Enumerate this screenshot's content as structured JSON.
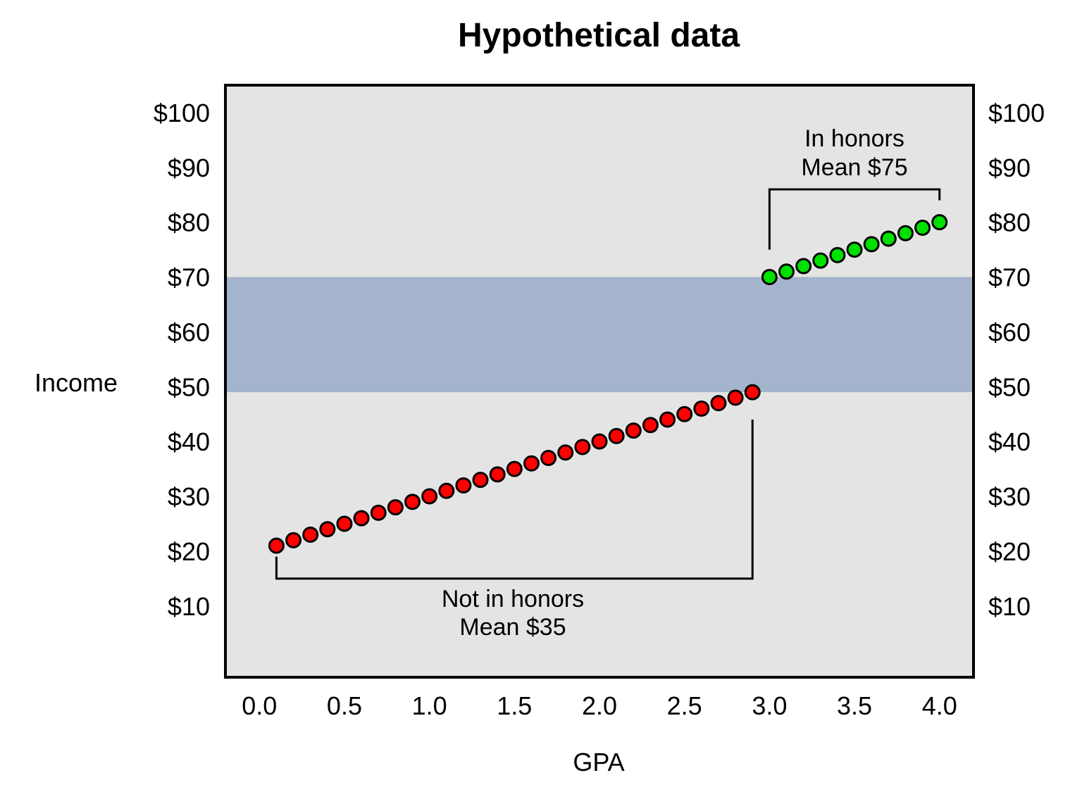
{
  "chart_data": {
    "type": "scatter",
    "title": "Hypothetical data",
    "xlabel": "GPA",
    "ylabel": "Income",
    "xlim": [
      -0.2,
      4.2
    ],
    "ylim": [
      -3,
      105
    ],
    "x_ticks": [
      "0.0",
      "0.5",
      "1.0",
      "1.5",
      "2.0",
      "2.5",
      "3.0",
      "3.5",
      "4.0"
    ],
    "y_ticks": [
      "$10",
      "$20",
      "$30",
      "$40",
      "$50",
      "$60",
      "$70",
      "$80",
      "$90",
      "$100"
    ],
    "y_ticks_right": true,
    "grid": false,
    "plot_background": "#e4e4e4",
    "band": {
      "y_from": 49,
      "y_to": 70,
      "color": "#a3b4cc"
    },
    "series": [
      {
        "group": "not-in-honors",
        "color": "#ff0000",
        "x": [
          0.1,
          0.2,
          0.3,
          0.4,
          0.5,
          0.6,
          0.7,
          0.8,
          0.9,
          1.0,
          1.1,
          1.2,
          1.3,
          1.4,
          1.5,
          1.6,
          1.7,
          1.8,
          1.9,
          2.0,
          2.1,
          2.2,
          2.3,
          2.4,
          2.5,
          2.6,
          2.7,
          2.8,
          2.9
        ],
        "y": [
          21,
          22,
          23,
          24,
          25,
          26,
          27,
          28,
          29,
          30,
          31,
          32,
          33,
          34,
          35,
          36,
          37,
          38,
          39,
          40,
          41,
          42,
          43,
          44,
          45,
          46,
          47,
          48,
          49
        ]
      },
      {
        "group": "in-honors",
        "color": "#00e000",
        "x": [
          3.0,
          3.1,
          3.2,
          3.3,
          3.4,
          3.5,
          3.6,
          3.7,
          3.8,
          3.9,
          4.0
        ],
        "y": [
          70,
          71,
          72,
          73,
          74,
          75,
          76,
          77,
          78,
          79,
          80
        ]
      }
    ],
    "annotations": [
      {
        "name": "not-in-honors",
        "lines": [
          "Not in honors",
          "Mean $35"
        ],
        "bracket_x": [
          0.1,
          2.9
        ],
        "bracket_y": 15,
        "bracket_top_right": 44
      },
      {
        "name": "in-honors",
        "lines": [
          "In honors",
          "Mean $75"
        ],
        "bracket_x": [
          3.0,
          4.0
        ],
        "bracket_y": 86,
        "bracket_bottom_left": 75,
        "bracket_bottom_right": 84
      }
    ]
  }
}
